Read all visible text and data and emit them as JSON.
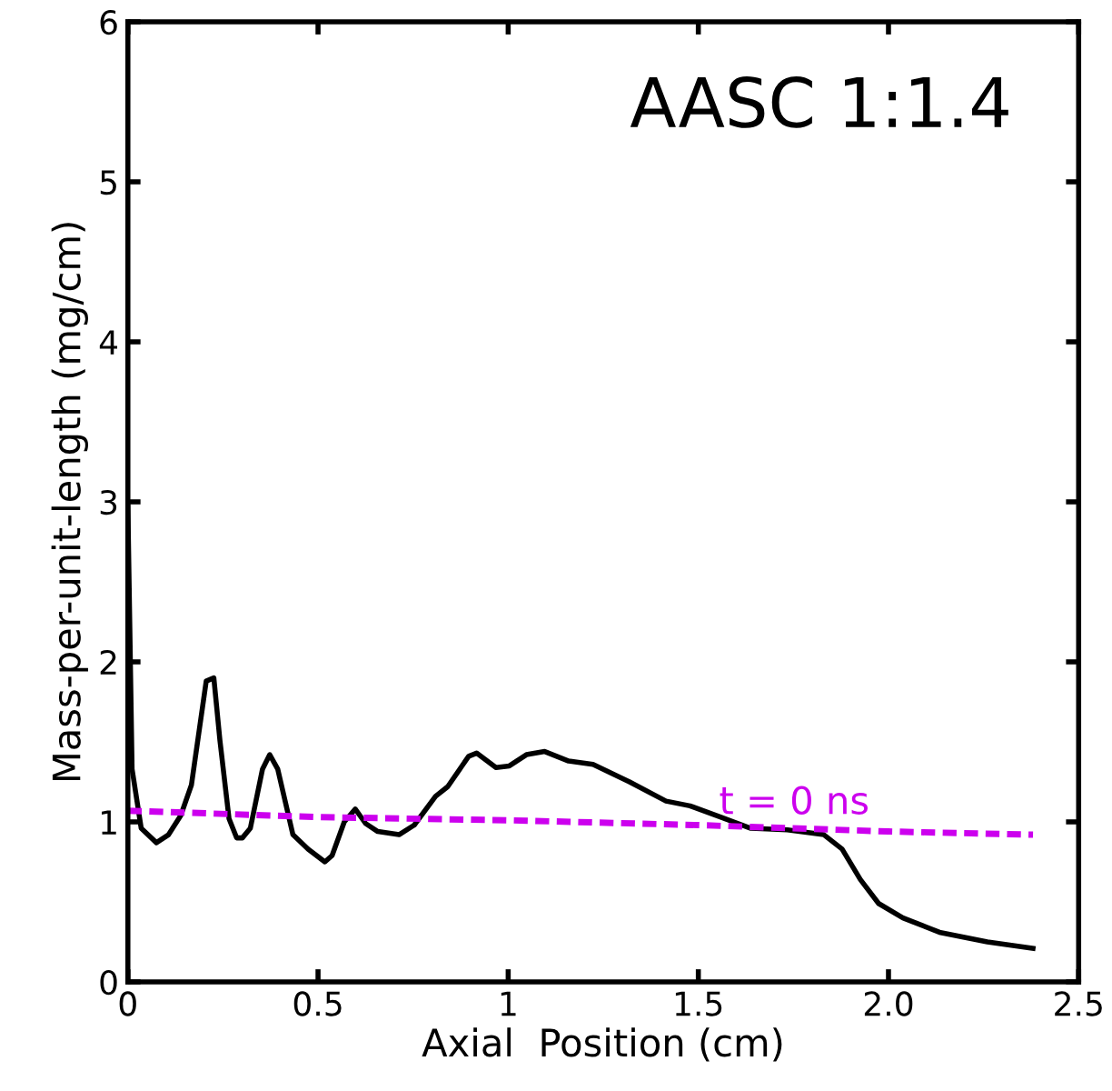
{
  "chart_data": {
    "type": "line",
    "title": "AASC 1:1.4",
    "xlabel": "Axial  Position (cm)",
    "ylabel": "Mass-per-unit-length (mg/cm)",
    "xlim": [
      0,
      2.5
    ],
    "ylim": [
      0,
      6
    ],
    "xticks": [
      0,
      0.5,
      1,
      1.5,
      {
        "value": 2.0,
        "label": "2.0"
      },
      2.5
    ],
    "yticks": [
      0,
      1,
      2,
      3,
      4,
      5,
      6
    ],
    "grid": false,
    "legend": false,
    "marker": "none",
    "series": [
      {
        "color": "#000000",
        "line_style": "solid",
        "x": [
          0.0,
          0.011,
          0.035,
          0.075,
          0.107,
          0.139,
          0.167,
          0.206,
          0.226,
          0.242,
          0.266,
          0.286,
          0.301,
          0.322,
          0.354,
          0.373,
          0.394,
          0.434,
          0.474,
          0.518,
          0.537,
          0.569,
          0.598,
          0.625,
          0.657,
          0.713,
          0.753,
          0.809,
          0.841,
          0.896,
          0.917,
          0.968,
          1.003,
          1.048,
          1.096,
          1.159,
          1.223,
          1.319,
          1.415,
          1.478,
          1.558,
          1.638,
          1.734,
          1.83,
          1.878,
          1.926,
          1.974,
          2.038,
          2.134,
          2.26,
          2.38
        ],
        "values": [
          2.97,
          1.33,
          0.96,
          0.87,
          0.92,
          1.04,
          1.23,
          1.88,
          1.9,
          1.51,
          1.02,
          0.9,
          0.9,
          0.96,
          1.33,
          1.42,
          1.33,
          0.92,
          0.83,
          0.75,
          0.79,
          1.0,
          1.08,
          0.99,
          0.94,
          0.92,
          0.98,
          1.16,
          1.22,
          1.41,
          1.43,
          1.34,
          1.35,
          1.42,
          1.44,
          1.38,
          1.36,
          1.25,
          1.13,
          1.1,
          1.03,
          0.96,
          0.95,
          0.92,
          0.83,
          0.64,
          0.49,
          0.4,
          0.31,
          0.25,
          0.21
        ]
      },
      {
        "name": "t = 0 ns",
        "color": "#cc00ee",
        "line_style": "dashed",
        "x": [
          0,
          0.5,
          1.0,
          1.5,
          2.0,
          2.38
        ],
        "values": [
          1.07,
          1.03,
          1.01,
          0.98,
          0.94,
          0.92
        ]
      }
    ]
  }
}
